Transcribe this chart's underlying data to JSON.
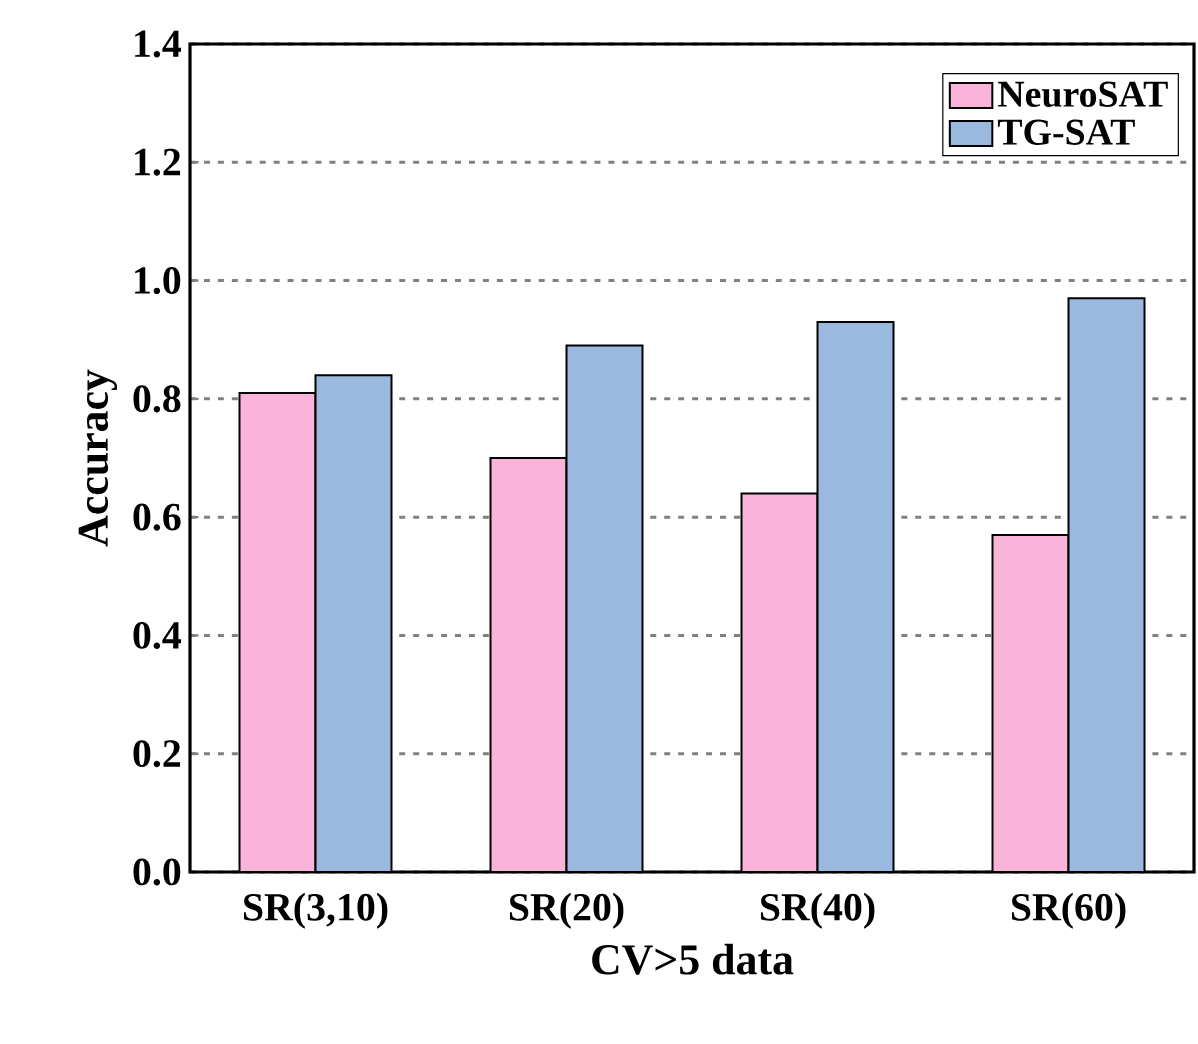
{
  "chart_data": {
    "type": "bar",
    "xlabel": "CV>5 data",
    "ylabel": "Accuracy",
    "categories": [
      "SR(3,10)",
      "SR(20)",
      "SR(40)",
      "SR(60)"
    ],
    "series": [
      {
        "name": "NeuroSAT",
        "color": "#fbb4d9",
        "values": [
          0.81,
          0.7,
          0.64,
          0.57
        ]
      },
      {
        "name": "TG-SAT",
        "color": "#9bb8df",
        "values": [
          0.84,
          0.89,
          0.93,
          0.97
        ]
      }
    ],
    "ylim": [
      0,
      1.4
    ],
    "yticks": [
      {
        "value": 0,
        "label": "0.0"
      },
      {
        "value": 0.2,
        "label": "0.2"
      },
      {
        "value": 0.4,
        "label": "0.4"
      },
      {
        "value": 0.6,
        "label": "0.6"
      },
      {
        "value": 0.8,
        "label": "0.8"
      },
      {
        "value": 1.0,
        "label": "1.0"
      },
      {
        "value": 1.2,
        "label": "1.2"
      },
      {
        "value": 1.4,
        "label": "1.4"
      }
    ],
    "grid": "y",
    "legend": "top right"
  }
}
